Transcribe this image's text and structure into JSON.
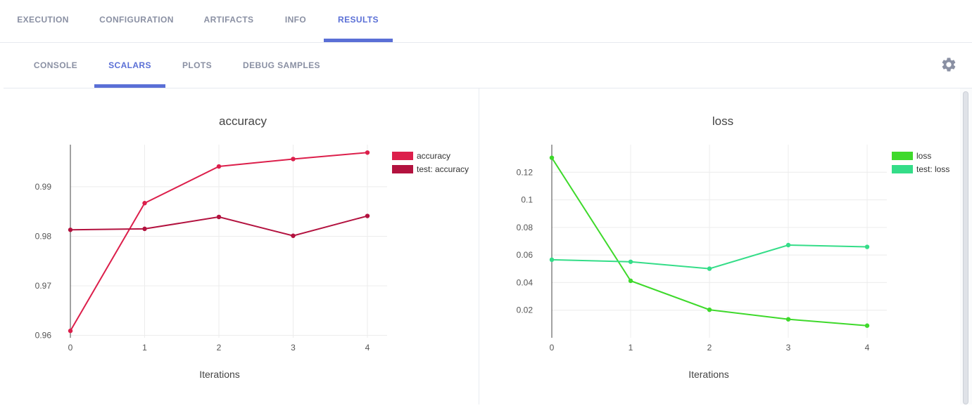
{
  "tabs": [
    "EXECUTION",
    "CONFIGURATION",
    "ARTIFACTS",
    "INFO",
    "RESULTS"
  ],
  "active_tab": "RESULTS",
  "subtabs": [
    "CONSOLE",
    "SCALARS",
    "PLOTS",
    "DEBUG SAMPLES"
  ],
  "active_subtab": "SCALARS",
  "settings_icon": "gear-icon",
  "chart_data": [
    {
      "type": "line",
      "title": "accuracy",
      "xlabel": "Iterations",
      "ylabel": "",
      "x": [
        0,
        1,
        2,
        3,
        4
      ],
      "xlim": [
        0,
        4
      ],
      "ylim": [
        0.9595,
        0.9985
      ],
      "yticks": [
        0.96,
        0.97,
        0.98,
        0.99
      ],
      "ytick_labels": [
        "0.96",
        "0.97",
        "0.98",
        "0.99"
      ],
      "grid": true,
      "legend_position": "top-right",
      "series": [
        {
          "name": "accuracy",
          "color": "#dc1f4b",
          "values": [
            0.9609,
            0.9867,
            0.9941,
            0.9956,
            0.9969
          ]
        },
        {
          "name": "test: accuracy",
          "color": "#b3123f",
          "values": [
            0.9813,
            0.9815,
            0.9839,
            0.9801,
            0.9841
          ]
        }
      ]
    },
    {
      "type": "line",
      "title": "loss",
      "xlabel": "Iterations",
      "ylabel": "",
      "x": [
        0,
        1,
        2,
        3,
        4
      ],
      "xlim": [
        0,
        4
      ],
      "ylim": [
        0.0,
        0.14
      ],
      "yticks": [
        0.02,
        0.04,
        0.06,
        0.08,
        0.1,
        0.12
      ],
      "ytick_labels": [
        "0.02",
        "0.04",
        "0.06",
        "0.08",
        "0.1",
        "0.12"
      ],
      "grid": true,
      "legend_position": "top-right",
      "series": [
        {
          "name": "loss",
          "color": "#3ed92b",
          "values": [
            0.1305,
            0.0413,
            0.0203,
            0.0134,
            0.0088
          ]
        },
        {
          "name": "test: loss",
          "color": "#34dd88",
          "values": [
            0.0566,
            0.0551,
            0.0501,
            0.0672,
            0.0659
          ]
        }
      ]
    }
  ]
}
